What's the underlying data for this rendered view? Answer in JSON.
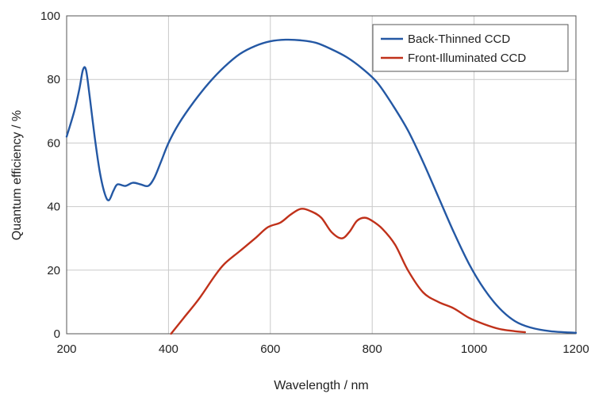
{
  "chart_data": {
    "type": "line",
    "title": "",
    "xlabel": "Wavelength / nm",
    "ylabel": "Quantum efficiency / %",
    "xlim": [
      200,
      1200
    ],
    "ylim": [
      0,
      100
    ],
    "xticks": [
      200,
      400,
      600,
      800,
      1000,
      1200
    ],
    "yticks": [
      0,
      20,
      40,
      60,
      80,
      100
    ],
    "grid": true,
    "legend_position": "top-right",
    "series": [
      {
        "name": "Back-Thinned CCD",
        "color": "#2458a4",
        "points": [
          [
            200,
            62
          ],
          [
            215,
            70
          ],
          [
            225,
            77
          ],
          [
            232,
            83
          ],
          [
            238,
            83
          ],
          [
            245,
            75
          ],
          [
            255,
            62
          ],
          [
            265,
            51
          ],
          [
            275,
            44
          ],
          [
            283,
            42
          ],
          [
            292,
            45
          ],
          [
            300,
            47
          ],
          [
            315,
            46.5
          ],
          [
            330,
            47.5
          ],
          [
            345,
            47
          ],
          [
            360,
            46.5
          ],
          [
            372,
            49
          ],
          [
            385,
            54
          ],
          [
            400,
            60
          ],
          [
            420,
            66
          ],
          [
            450,
            73
          ],
          [
            480,
            79
          ],
          [
            510,
            84
          ],
          [
            540,
            88
          ],
          [
            570,
            90.5
          ],
          [
            600,
            92
          ],
          [
            630,
            92.5
          ],
          [
            660,
            92.3
          ],
          [
            690,
            91.5
          ],
          [
            720,
            89.5
          ],
          [
            750,
            87
          ],
          [
            780,
            83.5
          ],
          [
            810,
            79
          ],
          [
            840,
            72
          ],
          [
            870,
            64
          ],
          [
            900,
            54
          ],
          [
            930,
            43
          ],
          [
            960,
            32
          ],
          [
            990,
            22
          ],
          [
            1020,
            14
          ],
          [
            1050,
            8
          ],
          [
            1080,
            4
          ],
          [
            1110,
            2
          ],
          [
            1150,
            0.8
          ],
          [
            1200,
            0.3
          ]
        ]
      },
      {
        "name": "Front-Illuminated CCD",
        "color": "#c0311a",
        "points": [
          [
            405,
            0
          ],
          [
            430,
            5
          ],
          [
            460,
            11
          ],
          [
            490,
            18
          ],
          [
            510,
            22
          ],
          [
            540,
            26
          ],
          [
            570,
            30
          ],
          [
            595,
            33.5
          ],
          [
            620,
            35
          ],
          [
            640,
            37.5
          ],
          [
            660,
            39.3
          ],
          [
            680,
            38.5
          ],
          [
            700,
            36.5
          ],
          [
            720,
            32
          ],
          [
            740,
            30
          ],
          [
            755,
            32
          ],
          [
            770,
            35.5
          ],
          [
            785,
            36.5
          ],
          [
            800,
            35.5
          ],
          [
            820,
            33
          ],
          [
            845,
            28
          ],
          [
            870,
            20
          ],
          [
            900,
            13
          ],
          [
            930,
            10
          ],
          [
            960,
            8
          ],
          [
            990,
            5
          ],
          [
            1020,
            3
          ],
          [
            1050,
            1.5
          ],
          [
            1080,
            0.8
          ],
          [
            1100,
            0.5
          ]
        ]
      }
    ]
  }
}
